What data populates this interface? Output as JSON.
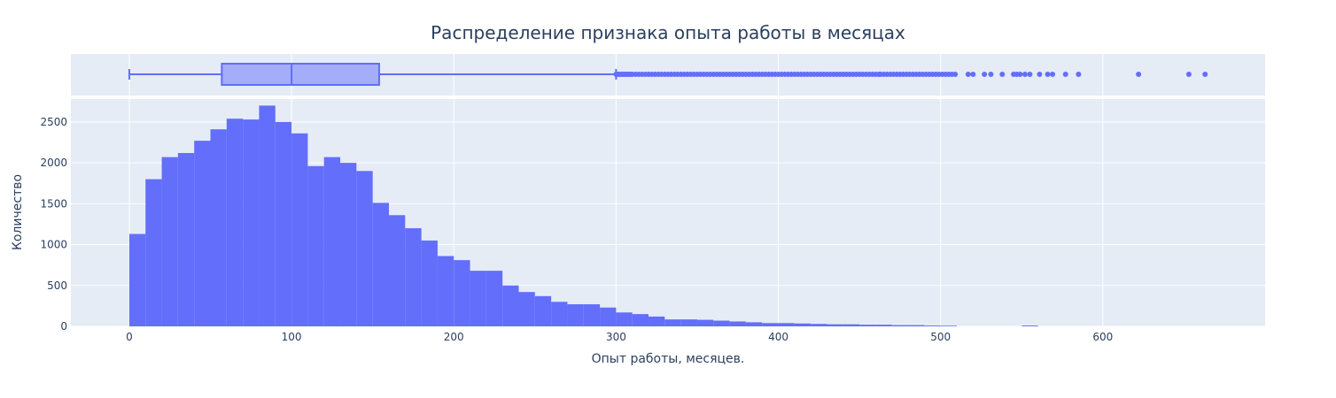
{
  "colors": {
    "plot_bg": "#e5ecf6",
    "grid": "#ffffff",
    "bar": "#636efa",
    "box_fill": "#636efa",
    "text": "#2a3f5f"
  },
  "chart_data": [
    {
      "type": "box",
      "title": "Распределение признака опыта работы в месяцах",
      "orientation": "horizontal",
      "whisker_low": 0,
      "q1": 57,
      "median": 100,
      "q3": 154,
      "whisker_high": 300,
      "outliers": [
        300,
        301,
        302,
        303,
        304,
        305,
        306,
        307,
        308,
        309,
        310,
        312,
        314,
        316,
        318,
        320,
        322,
        324,
        326,
        328,
        330,
        332,
        334,
        336,
        338,
        340,
        342,
        344,
        346,
        348,
        350,
        352,
        354,
        356,
        358,
        360,
        362,
        364,
        366,
        368,
        370,
        372,
        374,
        376,
        378,
        380,
        382,
        384,
        386,
        388,
        390,
        392,
        394,
        396,
        398,
        400,
        402,
        404,
        406,
        408,
        410,
        412,
        414,
        416,
        418,
        420,
        422,
        424,
        426,
        428,
        430,
        432,
        434,
        436,
        438,
        440,
        442,
        444,
        446,
        448,
        450,
        452,
        454,
        456,
        458,
        460,
        462,
        463,
        465,
        467,
        469,
        471,
        473,
        475,
        477,
        479,
        481,
        483,
        485,
        487,
        489,
        491,
        493,
        495,
        497,
        499,
        501,
        503,
        505,
        507,
        509,
        517,
        520,
        527,
        531,
        538,
        545,
        547,
        549,
        552,
        555,
        561,
        566,
        569,
        577,
        585,
        622,
        653,
        663
      ],
      "xlim": [
        -36,
        700
      ]
    },
    {
      "type": "bar",
      "xlabel": "Опыт работы, месяцев.",
      "ylabel": "Количество",
      "xlim": [
        -36,
        700
      ],
      "ylim": [
        0,
        2780
      ],
      "bin_width": 10,
      "bin_start": 0,
      "values": [
        1130,
        1800,
        2070,
        2120,
        2270,
        2410,
        2540,
        2530,
        2700,
        2500,
        2360,
        1960,
        2070,
        2000,
        1900,
        1510,
        1360,
        1200,
        1050,
        860,
        810,
        680,
        680,
        500,
        420,
        370,
        300,
        270,
        270,
        230,
        170,
        150,
        120,
        85,
        85,
        80,
        70,
        60,
        50,
        40,
        40,
        35,
        30,
        25,
        25,
        20,
        20,
        15,
        15,
        10,
        8,
        0,
        0,
        0,
        0,
        10,
        0,
        0,
        0,
        0
      ]
    }
  ],
  "axes": {
    "x_ticks": [
      "0",
      "100",
      "200",
      "300",
      "400",
      "500",
      "600"
    ],
    "y_ticks": [
      "0",
      "500",
      "1000",
      "1500",
      "2000",
      "2500"
    ]
  }
}
